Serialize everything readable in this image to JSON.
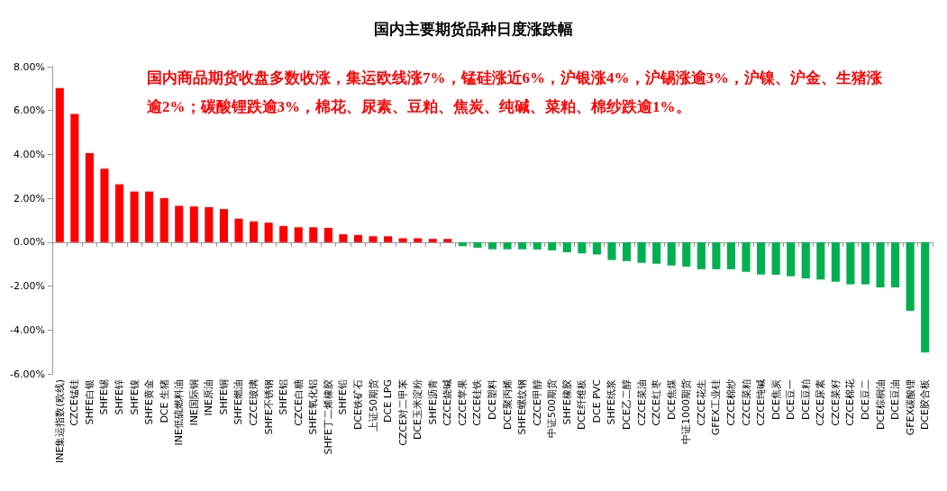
{
  "chart_data": {
    "type": "bar",
    "title": "国内主要期货品种日度涨跌幅",
    "annotations": [
      "国内商品期货收盘多数收涨，集运欧线涨7%，锰硅涨近6%，沪银涨4%，沪锡涨逾3%，沪镍、沪金、生猪涨逾2%；碳酸锂跌逾3%，棉花、尿素、豆粕、焦炭、纯碱、菜粕、棉纱跌逾1%。"
    ],
    "categories": [
      "INE集运指数(欧线)",
      "CZCE锰硅",
      "SHFE白银",
      "SHFE锡",
      "SHFE锌",
      "SHFE镍",
      "SHFE黄金",
      "DCE 生猪",
      "INE低硫燃料油",
      "INE国际铜",
      "INE原油",
      "SHFE铜",
      "SHFE燃油",
      "CZCE玻璃",
      "SHFE不锈钢",
      "SHFE铝",
      "CZCE白糖",
      "SHFE氧化铝",
      "SHFE丁二烯橡胶",
      "SHFE铅",
      "DCE铁矿石",
      "上证50期货",
      "DCE LPG",
      "CZCE对二甲苯",
      "DCE玉米淀粉",
      "SHFE沥青",
      "CZCE烧碱",
      "CZCE苹果",
      "CZCE硅铁",
      "DCE塑料",
      "DCE聚丙烯",
      "SHFE螺纹钢",
      "CZCE甲醇",
      "中证500期货",
      "SHFE橡胶",
      "DCE纤维板",
      "DCE PVC",
      "SHFE纸浆",
      "DCE乙二醇",
      "CZCE菜油",
      "CZCE红枣",
      "DCE焦煤",
      "中证1000期货",
      "CZCE花生",
      "GFEX工业硅",
      "CZCE棉纱",
      "CZCE菜粕",
      "CZCE纯碱",
      "DCE焦炭",
      "DCE豆一",
      "DCE豆粕",
      "CZCE尿素",
      "CZCE菜籽",
      "CZCE棉花",
      "DCE豆二",
      "DCE棕榈油",
      "DCE豆油",
      "GFEX碳酸锂",
      "DCE胶合板"
    ],
    "values": [
      7.03,
      5.84,
      4.06,
      3.35,
      2.64,
      2.31,
      2.31,
      2.01,
      1.66,
      1.63,
      1.6,
      1.51,
      1.07,
      0.95,
      0.89,
      0.74,
      0.68,
      0.68,
      0.65,
      0.36,
      0.33,
      0.27,
      0.27,
      0.18,
      0.18,
      0.15,
      0.15,
      -0.18,
      -0.25,
      -0.32,
      -0.32,
      -0.32,
      -0.33,
      -0.37,
      -0.46,
      -0.51,
      -0.56,
      -0.81,
      -0.86,
      -0.94,
      -0.98,
      -1.06,
      -1.11,
      -1.23,
      -1.23,
      -1.23,
      -1.35,
      -1.47,
      -1.48,
      -1.55,
      -1.65,
      -1.7,
      -1.8,
      -1.92,
      -1.92,
      -2.06,
      -2.06,
      -3.13,
      -5.03
    ],
    "colors": [
      "#ff0000",
      "#ff0000",
      "#ff0000",
      "#ff0000",
      "#ff0000",
      "#ff0000",
      "#ff0000",
      "#ff0000",
      "#ff0000",
      "#ff0000",
      "#ff0000",
      "#ff0000",
      "#ff0000",
      "#ff0000",
      "#ff0000",
      "#ff0000",
      "#ff0000",
      "#ff0000",
      "#ff0000",
      "#ff0000",
      "#ff0000",
      "#ff0000",
      "#ff0000",
      "#ff0000",
      "#ff0000",
      "#ff0000",
      "#ff0000",
      "#00b050",
      "#00b050",
      "#00b050",
      "#00b050",
      "#00b050",
      "#00b050",
      "#00b050",
      "#00b050",
      "#00b050",
      "#00b050",
      "#00b050",
      "#00b050",
      "#00b050",
      "#00b050",
      "#00b050",
      "#00b050",
      "#00b050",
      "#00b050",
      "#00b050",
      "#00b050",
      "#00b050",
      "#00b050",
      "#00b050",
      "#00b050",
      "#00b050",
      "#00b050",
      "#00b050",
      "#00b050",
      "#00b050",
      "#00b050",
      "#00b050",
      "#00b050"
    ],
    "ylim": [
      -6,
      8
    ],
    "yticks": [
      {
        "value": -6,
        "label": "-6.00%"
      },
      {
        "value": -4,
        "label": "-4.00%"
      },
      {
        "value": -2,
        "label": "-2.00%"
      },
      {
        "value": 0,
        "label": "0.00%"
      },
      {
        "value": 2,
        "label": "2.00%"
      },
      {
        "value": 4,
        "label": "4.00%"
      },
      {
        "value": 6,
        "label": "6.00%"
      },
      {
        "value": 8,
        "label": "8.00%"
      }
    ],
    "orientation": "vertical"
  }
}
